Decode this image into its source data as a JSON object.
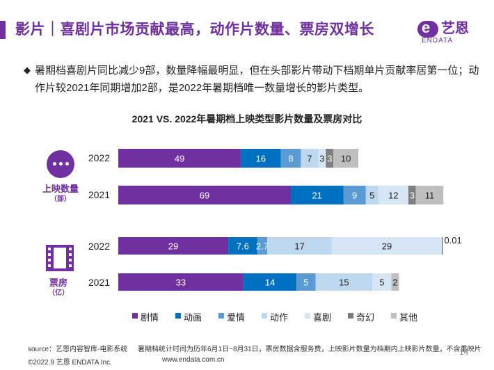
{
  "header": {
    "title": "影片｜喜剧片市场贡献最高，动作片数量、票房双增长",
    "logo_name": "艺恩",
    "logo_sub": "ENDATA",
    "logo_letter": "e"
  },
  "summary": {
    "bullet": "◆",
    "text": "暑期档喜剧片同比减少9部，数量降幅最明显，但在头部影片带动下档期单片贡献率居第一位；动作片较2021年同期增加2部，是2022年暑期档唯一数量增长的影片类型。"
  },
  "chart_data": {
    "type": "bar",
    "orientation": "horizontal",
    "stacked": true,
    "title": "2021 VS. 2022年暑期档上映类型影片数量及票房对比",
    "categories": [
      "剧情",
      "动画",
      "爱情",
      "动作",
      "喜剧",
      "奇幻",
      "其他"
    ],
    "colors": [
      "#7030a0",
      "#0070c0",
      "#5b9bd5",
      "#bdd7ee",
      "#d6e6f5",
      "#7f7f7f",
      "#bfbfbf"
    ],
    "legend_position": "bottom",
    "groups": [
      {
        "label": "上映数量",
        "unit": "（部）",
        "icon": "more-dots-icon",
        "rows": [
          {
            "year": "2022",
            "values": [
              49,
              16,
              8,
              7,
              3,
              3,
              10
            ],
            "labels": [
              "49",
              "16",
              "8",
              "7",
              "3",
              "3",
              "10"
            ]
          },
          {
            "year": "2021",
            "values": [
              69,
              21,
              9,
              5,
              12,
              3,
              11
            ],
            "labels": [
              "69",
              "21",
              "9",
              "5",
              "12",
              "3",
              "11"
            ]
          }
        ]
      },
      {
        "label": "票房",
        "unit": "（亿）",
        "icon": "film-reel-icon",
        "rows": [
          {
            "year": "2022",
            "values": [
              29,
              7.6,
              2.7,
              17,
              29,
              0.01,
              0
            ],
            "labels": [
              "29",
              "7.6",
              "2.7",
              "17",
              "29",
              "0.01",
              ""
            ]
          },
          {
            "year": "2021",
            "values": [
              33,
              14,
              5,
              15,
              5,
              0,
              2
            ],
            "labels": [
              "33",
              "14",
              "5",
              "15",
              "5",
              "",
              "2"
            ]
          }
        ]
      }
    ]
  },
  "footer": {
    "source": "source：艺恩内容智库-电影系统",
    "note": "暑期档统计时间为历年6月1日~8月31日，票房数据含服务费，上映影片数量为档期内上映影片数量，不含重映片",
    "copyright": "©2022.9 艺恩 ENDATA Inc.",
    "website": "www.endata.com.cn",
    "page": "14"
  }
}
